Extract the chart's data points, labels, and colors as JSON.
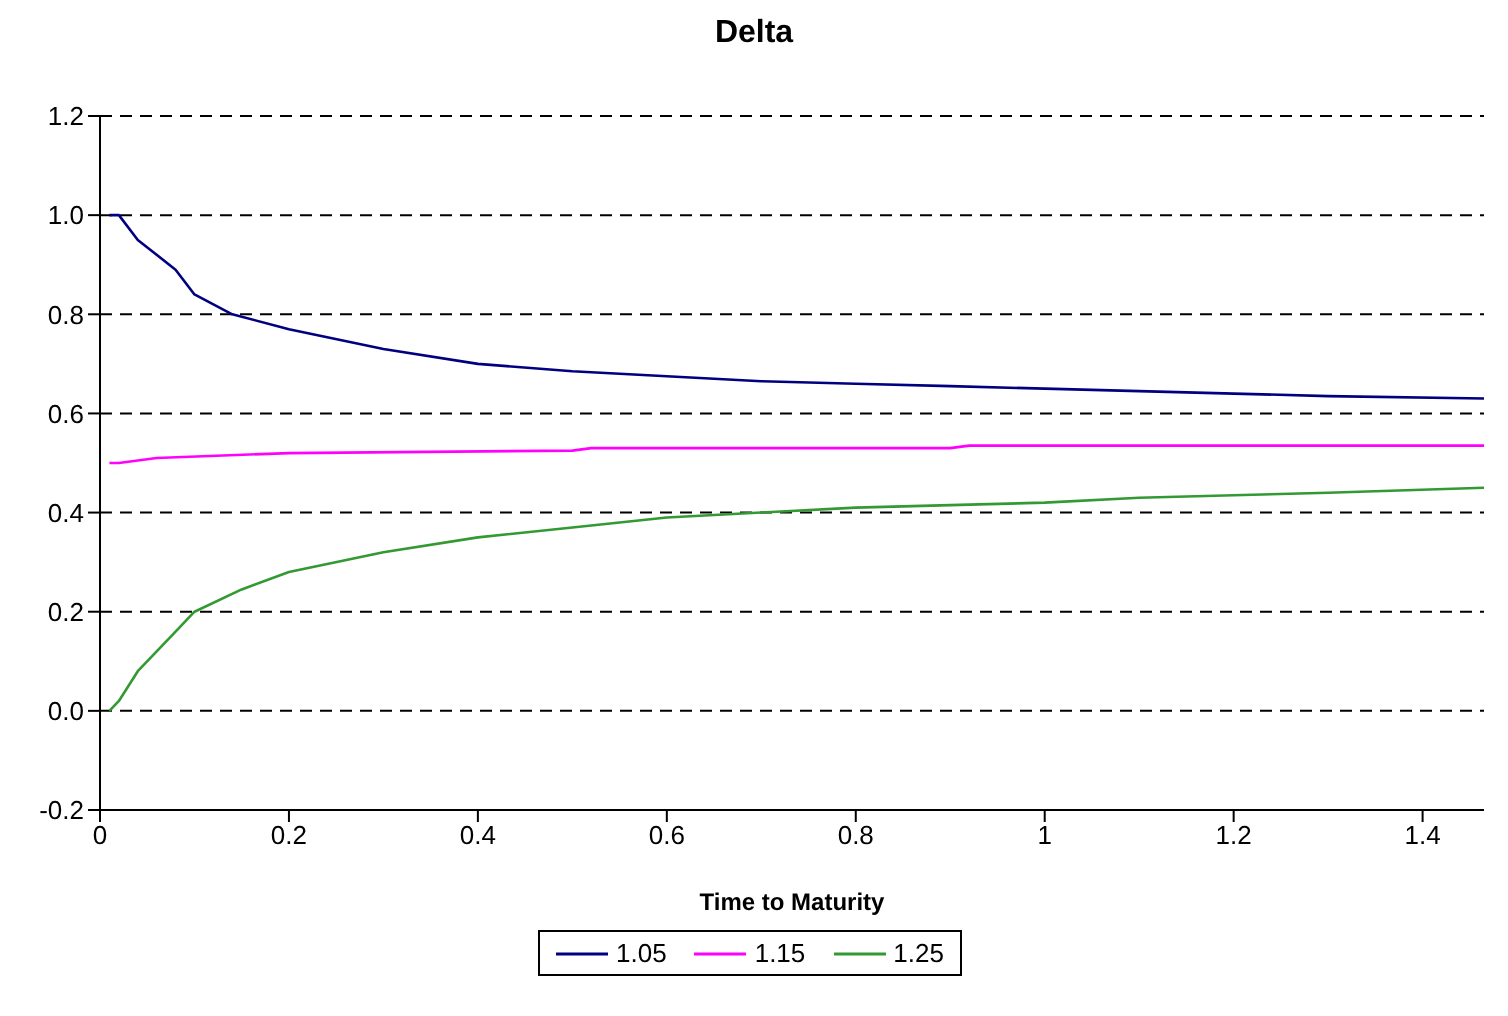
{
  "chart_data": {
    "type": "line",
    "title": "Delta",
    "xlabel": "Time to Maturity",
    "xlim": [
      0,
      1.465
    ],
    "xticks": [
      0,
      0.2,
      0.4,
      0.6,
      0.8,
      1,
      1.2,
      1.4
    ],
    "ylim": [
      -0.2,
      1.2
    ],
    "yticks": [
      {
        "value": -0.2,
        "label": "-0.2"
      },
      {
        "value": 0,
        "label": "0.0"
      },
      {
        "value": 0.2,
        "label": "0.2"
      },
      {
        "value": 0.4,
        "label": "0.4"
      },
      {
        "value": 0.6,
        "label": "0.6"
      },
      {
        "value": 0.8,
        "label": "0.8"
      },
      {
        "value": 1,
        "label": "1.0"
      },
      {
        "value": 1.2,
        "label": "1.2"
      }
    ],
    "grid": "y",
    "legend": "bottom",
    "marker": "none",
    "line_style": "solid",
    "series": [
      {
        "name": "1.05",
        "color": "#000080",
        "x": [
          0.01,
          0.02,
          0.04,
          0.08,
          0.1,
          0.14,
          0.2,
          0.3,
          0.4,
          0.5,
          0.6,
          0.7,
          0.8,
          0.9,
          1.0,
          1.1,
          1.2,
          1.3,
          1.465
        ],
        "values": [
          1.0,
          1.0,
          0.95,
          0.89,
          0.84,
          0.8,
          0.77,
          0.73,
          0.7,
          0.685,
          0.675,
          0.665,
          0.66,
          0.655,
          0.65,
          0.645,
          0.64,
          0.635,
          0.63
        ]
      },
      {
        "name": "1.15",
        "color": "#ff00ff",
        "x": [
          0.01,
          0.02,
          0.06,
          0.2,
          0.5,
          0.52,
          0.9,
          0.92,
          1.465
        ],
        "values": [
          0.5,
          0.5,
          0.51,
          0.52,
          0.525,
          0.53,
          0.53,
          0.535,
          0.535
        ]
      },
      {
        "name": "1.25",
        "color": "#339933",
        "x": [
          0.01,
          0.02,
          0.04,
          0.06,
          0.08,
          0.1,
          0.15,
          0.2,
          0.3,
          0.4,
          0.5,
          0.6,
          0.7,
          0.8,
          0.9,
          1.0,
          1.1,
          1.2,
          1.3,
          1.465
        ],
        "values": [
          0,
          0.02,
          0.08,
          0.12,
          0.16,
          0.2,
          0.245,
          0.28,
          0.32,
          0.35,
          0.37,
          0.39,
          0.4,
          0.41,
          0.415,
          0.42,
          0.43,
          0.435,
          0.44,
          0.45
        ]
      }
    ]
  }
}
